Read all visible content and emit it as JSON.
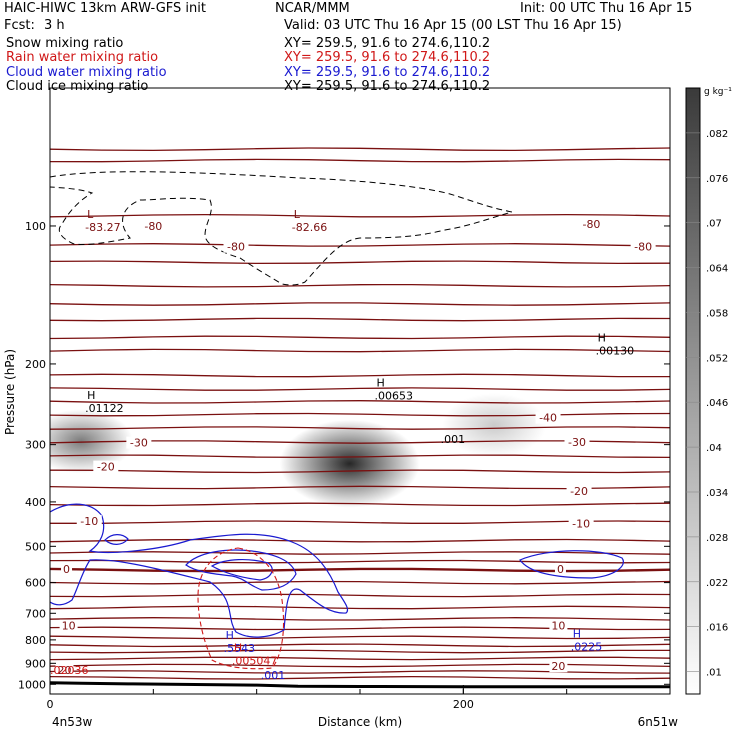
{
  "header": {
    "title": "HAIC-HIWC 13km ARW-GFS init",
    "org": "NCAR/MMM",
    "init": "Init: 00 UTC Thu 16 Apr 15",
    "fcst_label": "Fcst:",
    "fcst_value": "3 h",
    "valid": "Valid: 03 UTC Thu 16 Apr 15 (00 LST Thu 16 Apr 15)"
  },
  "fields": [
    {
      "label": "Snow mixing ratio",
      "xy": "XY= 259.5, 91.6 to 274.6,110.2",
      "color": "#000000"
    },
    {
      "label": "Rain water mixing ratio",
      "xy": "XY= 259.5, 91.6 to 274.6,110.2",
      "color": "#d01818"
    },
    {
      "label": "Cloud water mixing ratio",
      "xy": "XY= 259.5, 91.6 to 274.6,110.2",
      "color": "#1a1ad0"
    },
    {
      "label": "Cloud ice mixing ratio",
      "xy": "XY= 259.5, 91.6 to 274.6,110.2",
      "color": "#000000"
    }
  ],
  "chart_data": {
    "type": "heatmap",
    "xlabel": "Distance (km)",
    "ylabel": "Pressure (hPa)",
    "xlim": [
      0,
      300
    ],
    "ylim": [
      1050,
      50
    ],
    "y_scale": "log",
    "x_ticks": [
      "0",
      "200"
    ],
    "x_tick_values": [
      0,
      200
    ],
    "y_ticks": [
      "100",
      "200",
      "300",
      "400",
      "500",
      "600",
      "700",
      "800",
      "900",
      "1000"
    ],
    "y_tick_values": [
      100,
      200,
      300,
      400,
      500,
      600,
      700,
      800,
      900,
      1000
    ],
    "x_start_label": "4n53w",
    "x_end_label": "6n51w",
    "colorbar": {
      "unit": "g kg⁻¹",
      "labels": [
        ".082",
        ".076",
        ".07",
        ".064",
        ".058",
        ".052",
        ".046",
        ".04",
        ".034",
        ".028",
        ".022",
        ".016",
        ".01"
      ],
      "values": [
        0.082,
        0.076,
        0.07,
        0.064,
        0.058,
        0.052,
        0.046,
        0.04,
        0.034,
        0.028,
        0.022,
        0.016,
        0.01
      ]
    },
    "snow_maxima": [
      {
        "x": 15,
        "p": 295,
        "value": 0.05
      },
      {
        "x": 145,
        "p": 330,
        "value": 0.09
      },
      {
        "x": 215,
        "p": 272,
        "value": 0.02
      }
    ],
    "temperature_lines_p": [
      68,
      72,
      95,
      110,
      120,
      135,
      148,
      160,
      175,
      187,
      212,
      227,
      242,
      258,
      276,
      296,
      318,
      343,
      372,
      405,
      443,
      486,
      517,
      540,
      563,
      600,
      640,
      680,
      720,
      755,
      790,
      822,
      848,
      878,
      910,
      940,
      968
    ],
    "temperature_labels": [
      {
        "text": "-80",
        "x": 50,
        "p": 100
      },
      {
        "text": "-80",
        "x": 90,
        "p": 111
      },
      {
        "text": "-80",
        "x": 262,
        "p": 99
      },
      {
        "text": "-80",
        "x": 287,
        "p": 111
      },
      {
        "text": "-40",
        "x": 241,
        "p": 262
      },
      {
        "text": "-30",
        "x": 43,
        "p": 297
      },
      {
        "text": "-30",
        "x": 255,
        "p": 296
      },
      {
        "text": "-20",
        "x": 27,
        "p": 335
      },
      {
        "text": "-20",
        "x": 256,
        "p": 379
      },
      {
        "text": "-10",
        "x": 19,
        "p": 440
      },
      {
        "text": "-10",
        "x": 257,
        "p": 446
      },
      {
        "text": "0",
        "x": 8,
        "p": 560
      },
      {
        "text": "0",
        "x": 247,
        "p": 560
      },
      {
        "text": "10",
        "x": 9,
        "p": 745
      },
      {
        "text": "10",
        "x": 246,
        "p": 745
      },
      {
        "text": "20",
        "x": 7,
        "p": 930
      },
      {
        "text": "20",
        "x": 246,
        "p": 913
      }
    ],
    "extrema_labels": [
      {
        "mark": "L",
        "value": "-83.27",
        "x": 17,
        "p": 100,
        "color": "#7a1010"
      },
      {
        "mark": "L",
        "value": "-82.66",
        "x": 117,
        "p": 100,
        "color": "#7a1010"
      },
      {
        "mark": "H",
        "value": ".00130",
        "x": 264,
        "p": 186,
        "color": "#000000"
      },
      {
        "mark": "H",
        "value": ".01122",
        "x": 17,
        "p": 248,
        "color": "#000000"
      },
      {
        "mark": "H",
        "value": ".00653",
        "x": 157,
        "p": 233,
        "color": "#000000"
      },
      {
        "mark": "",
        "value": ".001",
        "x": 189,
        "p": 290,
        "color": "#000000"
      },
      {
        "mark": "H",
        "value": ".5543",
        "x": 84,
        "p": 830,
        "color": "#1a1ad0"
      },
      {
        "mark": "H",
        "value": ".0225",
        "x": 252,
        "p": 822,
        "color": "#1a1ad0"
      },
      {
        "mark": "H",
        "value": ".005047",
        "x": 88,
        "p": 883,
        "color": "#d01818"
      },
      {
        "mark": "",
        "value": ".02036",
        "x": 0,
        "p": 925,
        "color": "#d01818"
      },
      {
        "mark": "",
        "value": ".001",
        "x": 102,
        "p": 950,
        "color": "#1a1ad0"
      }
    ],
    "ground_p": [
      [
        0,
        992
      ],
      [
        15,
        995
      ],
      [
        40,
        998
      ],
      [
        70,
        1001
      ],
      [
        100,
        1004
      ],
      [
        120,
        1010
      ],
      [
        150,
        1011
      ],
      [
        200,
        1012
      ],
      [
        300,
        1012
      ]
    ]
  }
}
